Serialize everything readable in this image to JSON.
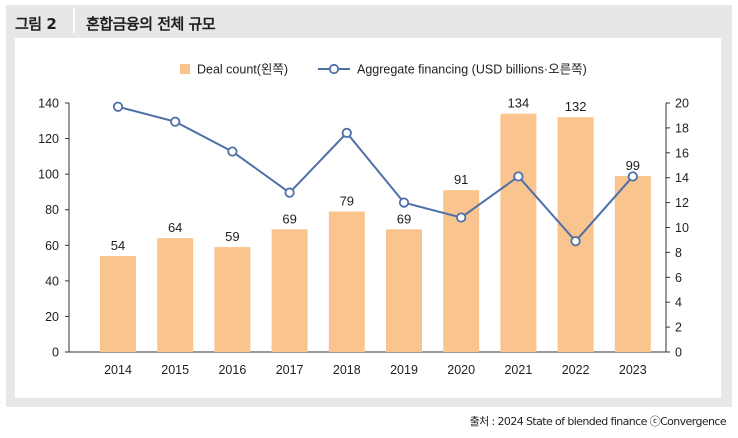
{
  "figure": {
    "label": "그림 2",
    "title": "혼합금융의 전체 규모"
  },
  "source": "출처 : 2024 State of blended finance ⓒConvergence",
  "colors": {
    "bar": "#f9c48e",
    "line": "#4e6fa8",
    "frame": "#e7e7e8",
    "text": "#1f1f1f"
  },
  "chart_data": {
    "type": "bar+line",
    "title": "혼합금융의 전체 규모",
    "categories": [
      "2014",
      "2015",
      "2016",
      "2017",
      "2018",
      "2019",
      "2020",
      "2021",
      "2022",
      "2023"
    ],
    "series": [
      {
        "name": "Deal count(왼쪽)",
        "type": "bar",
        "axis": "left",
        "values": [
          54,
          64,
          59,
          69,
          79,
          69,
          91,
          134,
          132,
          99
        ]
      },
      {
        "name": "Aggregate financing (USD billions·오른쪽)",
        "type": "line",
        "axis": "right",
        "values": [
          19.7,
          18.5,
          16.1,
          12.8,
          17.6,
          12.0,
          10.8,
          14.1,
          8.9,
          14.1
        ]
      }
    ],
    "y_left": {
      "min": 0,
      "max": 140,
      "ticks": [
        0,
        20,
        40,
        60,
        80,
        100,
        120,
        140
      ]
    },
    "y_right": {
      "min": 0,
      "max": 20,
      "ticks": [
        0,
        2,
        4,
        6,
        8,
        10,
        12,
        14,
        16,
        18,
        20
      ]
    },
    "grid": false,
    "legend": "top"
  }
}
